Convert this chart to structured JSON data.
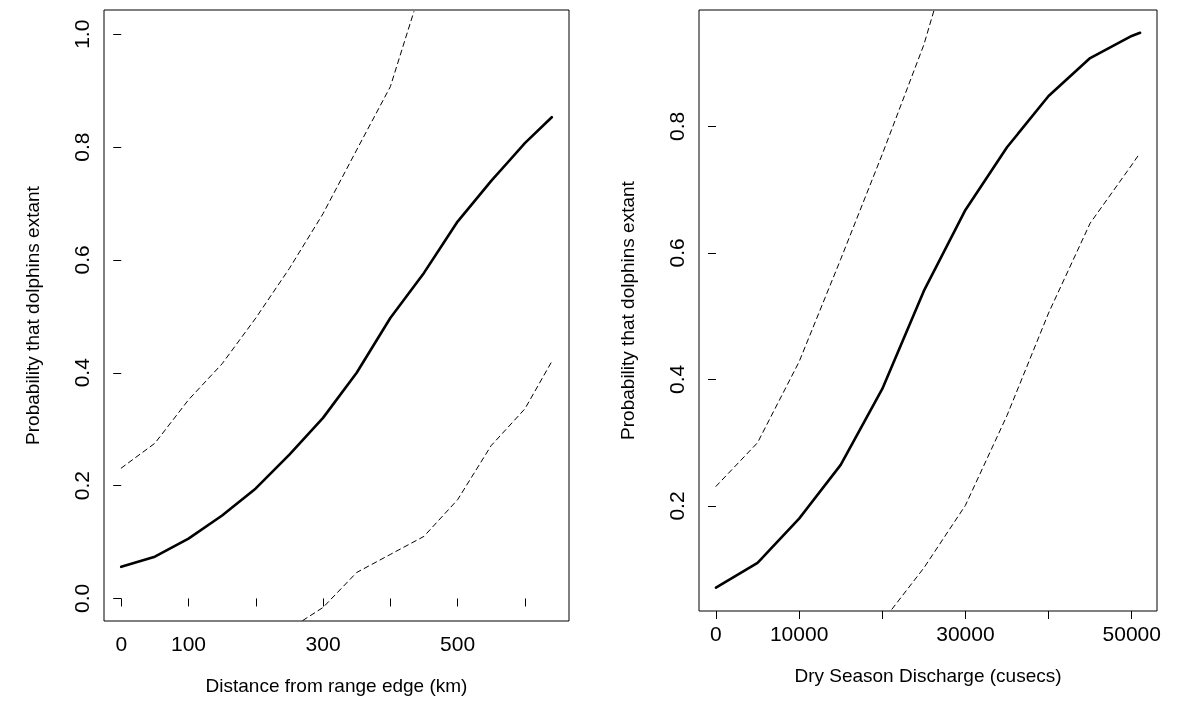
{
  "chart_data": [
    {
      "type": "line",
      "xlabel": "Distance from range edge (km)",
      "ylabel": "Probability that dolphins extant",
      "marker": "none",
      "grid": false,
      "xlim": [
        -25.6,
        665.6
      ],
      "xticks": [
        0,
        100,
        {
          "value": 200,
          "label": null
        },
        300,
        {
          "value": 400,
          "label": null
        },
        500,
        {
          "value": 600,
          "label": null
        }
      ],
      "ylim": [
        -0.04,
        1.043
      ],
      "yticks": [
        {
          "value": 0,
          "label": "0.0"
        },
        0.2,
        0.4,
        0.6,
        0.8,
        {
          "value": 1,
          "label": "1.0"
        }
      ],
      "series": [
        {
          "color": "#000000",
          "line_style": "solid",
          "x": [
            0,
            50,
            100,
            150,
            200,
            250,
            300,
            350,
            400,
            450,
            500,
            550,
            600,
            640
          ],
          "values": [
            0.056,
            0.074,
            0.106,
            0.147,
            0.195,
            0.255,
            0.32,
            0.4,
            0.497,
            0.577,
            0.668,
            0.74,
            0.807,
            0.853
          ]
        },
        {
          "color": "#000000",
          "line_style": "dashed",
          "x": [
            0,
            50,
            100,
            150,
            200,
            250,
            300,
            350,
            400,
            435
          ],
          "values": [
            0.231,
            0.275,
            0.352,
            0.416,
            0.497,
            0.585,
            0.682,
            0.795,
            0.907,
            1.04
          ]
        },
        {
          "color": "#000000",
          "line_style": "dashed",
          "x": [
            270,
            300,
            350,
            400,
            450,
            500,
            550,
            600,
            640
          ],
          "values": [
            -0.039,
            -0.016,
            0.046,
            0.078,
            0.11,
            0.175,
            0.271,
            0.336,
            0.42
          ]
        }
      ]
    },
    {
      "type": "line",
      "xlabel": "Dry Season Discharge (cusecs)",
      "ylabel": "Probability that dolphins extant",
      "marker": "none",
      "grid": false,
      "xlim": [
        -2040,
        53040
      ],
      "xticks": [
        0,
        10000,
        {
          "value": 20000,
          "label": null
        },
        30000,
        {
          "value": 40000,
          "label": null
        },
        50000
      ],
      "ylim": [
        0.034,
        0.984
      ],
      "yticks": [
        0.2,
        0.4,
        0.6,
        0.8
      ],
      "series": [
        {
          "color": "#000000",
          "line_style": "solid",
          "x": [
            0,
            5000,
            10000,
            15000,
            20000,
            25000,
            30000,
            35000,
            40000,
            45000,
            50000,
            51000
          ],
          "values": [
            0.071,
            0.11,
            0.18,
            0.265,
            0.385,
            0.54,
            0.668,
            0.767,
            0.848,
            0.908,
            0.943,
            0.948
          ]
        },
        {
          "color": "#000000",
          "line_style": "dashed",
          "x": [
            0,
            5000,
            10000,
            15000,
            20000,
            25000,
            26190
          ],
          "values": [
            0.231,
            0.3,
            0.428,
            0.59,
            0.756,
            0.929,
            0.982
          ]
        },
        {
          "color": "#000000",
          "line_style": "dashed",
          "x": [
            21170,
            25000,
            30000,
            35000,
            40000,
            45000,
            50000,
            51000
          ],
          "values": [
            0.037,
            0.102,
            0.201,
            0.343,
            0.505,
            0.647,
            0.739,
            0.758
          ]
        }
      ]
    }
  ]
}
